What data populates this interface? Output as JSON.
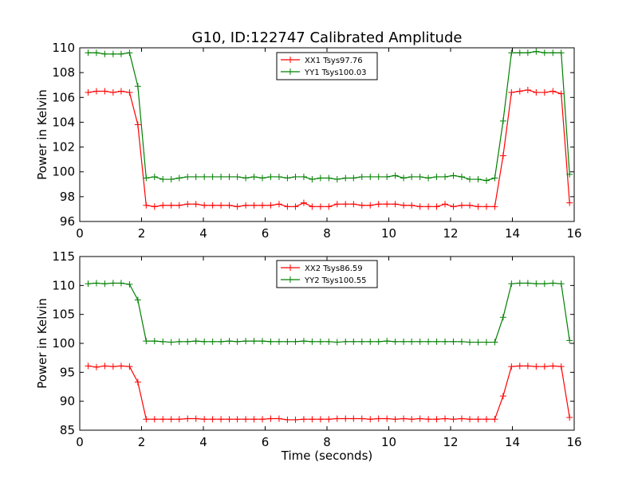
{
  "figure": {
    "title": "G10, ID:122747 Calibrated Amplitude"
  },
  "chart_data": [
    {
      "type": "line",
      "title": "G10, ID:122747 Calibrated Amplitude",
      "xlabel": "",
      "ylabel": "Power in Kelvin",
      "xlim": [
        0,
        16
      ],
      "ylim": [
        96,
        110
      ],
      "xticks": [
        0,
        2,
        4,
        6,
        8,
        10,
        12,
        14,
        16
      ],
      "yticks": [
        96,
        98,
        100,
        102,
        104,
        106,
        108,
        110
      ],
      "grid": false,
      "legend_position": "top-center",
      "x": [
        0.27,
        0.54,
        0.81,
        1.08,
        1.34,
        1.61,
        1.88,
        2.15,
        2.42,
        2.69,
        2.96,
        3.22,
        3.49,
        3.76,
        4.03,
        4.3,
        4.57,
        4.84,
        5.1,
        5.37,
        5.64,
        5.91,
        6.18,
        6.45,
        6.72,
        6.98,
        7.25,
        7.52,
        7.79,
        8.06,
        8.33,
        8.6,
        8.86,
        9.13,
        9.4,
        9.67,
        9.94,
        10.21,
        10.48,
        10.74,
        11.01,
        11.28,
        11.55,
        11.82,
        12.09,
        12.36,
        12.62,
        12.89,
        13.16,
        13.43,
        13.7,
        13.97,
        14.24,
        14.5,
        14.77,
        15.04,
        15.31,
        15.58,
        15.85
      ],
      "series": [
        {
          "name": "XX1 Tsys97.76",
          "color": "#ff0000",
          "values": [
            106.4,
            106.5,
            106.5,
            106.4,
            106.5,
            106.4,
            103.8,
            97.3,
            97.2,
            97.3,
            97.3,
            97.3,
            97.4,
            97.4,
            97.3,
            97.3,
            97.3,
            97.3,
            97.2,
            97.3,
            97.3,
            97.3,
            97.3,
            97.4,
            97.2,
            97.2,
            97.5,
            97.2,
            97.2,
            97.2,
            97.4,
            97.4,
            97.4,
            97.3,
            97.3,
            97.4,
            97.4,
            97.4,
            97.3,
            97.3,
            97.2,
            97.2,
            97.2,
            97.4,
            97.2,
            97.3,
            97.3,
            97.2,
            97.2,
            97.2,
            101.3,
            106.4,
            106.5,
            106.6,
            106.4,
            106.4,
            106.5,
            106.3,
            97.5
          ]
        },
        {
          "name": "YY1 Tsys100.03",
          "color": "#008000",
          "values": [
            109.6,
            109.6,
            109.5,
            109.5,
            109.5,
            109.6,
            106.9,
            99.5,
            99.6,
            99.4,
            99.4,
            99.5,
            99.6,
            99.6,
            99.6,
            99.6,
            99.6,
            99.6,
            99.6,
            99.5,
            99.6,
            99.5,
            99.6,
            99.6,
            99.5,
            99.6,
            99.6,
            99.4,
            99.5,
            99.5,
            99.4,
            99.5,
            99.5,
            99.6,
            99.6,
            99.6,
            99.6,
            99.7,
            99.5,
            99.6,
            99.6,
            99.5,
            99.6,
            99.6,
            99.7,
            99.6,
            99.4,
            99.4,
            99.3,
            99.5,
            104.1,
            109.6,
            109.6,
            109.6,
            109.7,
            109.6,
            109.6,
            109.6,
            99.8
          ]
        }
      ]
    },
    {
      "type": "line",
      "title": "",
      "xlabel": "Time (seconds)",
      "ylabel": "Power in Kelvin",
      "xlim": [
        0,
        16
      ],
      "ylim": [
        85,
        115
      ],
      "xticks": [
        0,
        2,
        4,
        6,
        8,
        10,
        12,
        14,
        16
      ],
      "yticks": [
        85,
        90,
        95,
        100,
        105,
        110,
        115
      ],
      "grid": false,
      "legend_position": "top-center",
      "x": [
        0.27,
        0.54,
        0.81,
        1.08,
        1.34,
        1.61,
        1.88,
        2.15,
        2.42,
        2.69,
        2.96,
        3.22,
        3.49,
        3.76,
        4.03,
        4.3,
        4.57,
        4.84,
        5.1,
        5.37,
        5.64,
        5.91,
        6.18,
        6.45,
        6.72,
        6.98,
        7.25,
        7.52,
        7.79,
        8.06,
        8.33,
        8.6,
        8.86,
        9.13,
        9.4,
        9.67,
        9.94,
        10.21,
        10.48,
        10.74,
        11.01,
        11.28,
        11.55,
        11.82,
        12.09,
        12.36,
        12.62,
        12.89,
        13.16,
        13.43,
        13.7,
        13.97,
        14.24,
        14.5,
        14.77,
        15.04,
        15.31,
        15.58,
        15.85
      ],
      "series": [
        {
          "name": "XX2 Tsys86.59",
          "color": "#ff0000",
          "values": [
            96.1,
            95.9,
            96.1,
            96.0,
            96.1,
            96.0,
            93.3,
            86.9,
            86.9,
            86.9,
            86.9,
            86.9,
            87.0,
            87.0,
            86.9,
            86.9,
            86.9,
            86.9,
            86.9,
            86.9,
            86.9,
            86.9,
            87.0,
            87.0,
            86.8,
            86.8,
            86.9,
            86.9,
            86.9,
            86.9,
            87.0,
            87.0,
            87.0,
            87.0,
            86.9,
            87.0,
            87.0,
            86.9,
            87.0,
            86.9,
            87.0,
            86.9,
            86.9,
            87.0,
            86.9,
            87.0,
            86.9,
            86.9,
            86.9,
            86.9,
            90.9,
            96.0,
            96.1,
            96.1,
            96.0,
            96.0,
            96.1,
            96.0,
            87.2
          ]
        },
        {
          "name": "YY2 Tsys100.55",
          "color": "#008000",
          "values": [
            110.3,
            110.4,
            110.3,
            110.4,
            110.4,
            110.2,
            107.5,
            100.4,
            100.4,
            100.3,
            100.2,
            100.3,
            100.3,
            100.4,
            100.3,
            100.3,
            100.3,
            100.4,
            100.3,
            100.4,
            100.4,
            100.4,
            100.3,
            100.3,
            100.3,
            100.3,
            100.4,
            100.3,
            100.3,
            100.3,
            100.2,
            100.3,
            100.3,
            100.3,
            100.3,
            100.3,
            100.4,
            100.3,
            100.3,
            100.3,
            100.3,
            100.3,
            100.3,
            100.3,
            100.3,
            100.3,
            100.2,
            100.2,
            100.2,
            100.2,
            104.5,
            110.3,
            110.4,
            110.4,
            110.3,
            110.3,
            110.4,
            110.3,
            100.5
          ]
        }
      ]
    }
  ]
}
